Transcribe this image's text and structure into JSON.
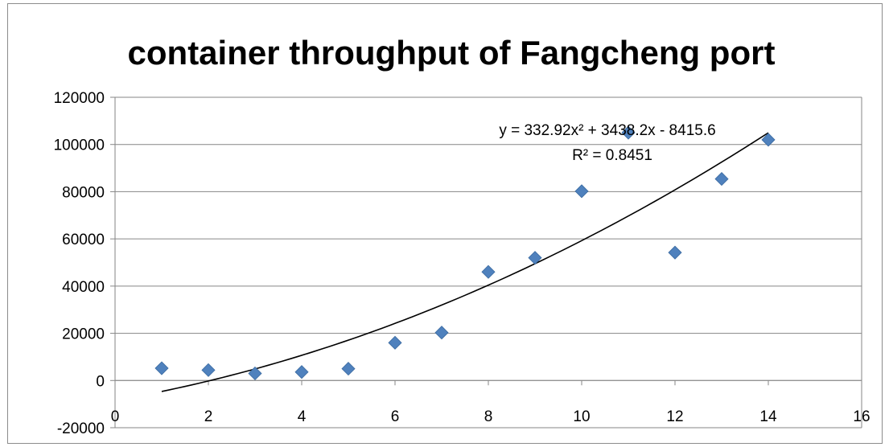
{
  "chart_data": {
    "type": "scatter",
    "title": "container throughput of Fangcheng port",
    "xlabel": "",
    "ylabel": "",
    "xlim": [
      0,
      16
    ],
    "ylim": [
      -20000,
      120000
    ],
    "x_ticks": [
      0,
      2,
      4,
      6,
      8,
      10,
      12,
      14,
      16
    ],
    "y_ticks": [
      -20000,
      0,
      20000,
      40000,
      60000,
      80000,
      100000,
      120000
    ],
    "grid": "horizontal",
    "legend": "none",
    "series": [
      {
        "x": [
          1,
          2,
          3,
          4,
          5,
          6,
          7,
          8,
          9,
          10,
          11,
          12,
          13,
          14
        ],
        "y": [
          5200,
          4400,
          3000,
          3600,
          5000,
          16000,
          20300,
          46000,
          52000,
          80200,
          105000,
          54200,
          85400,
          102000
        ],
        "color": "#4f81bd",
        "marker": "diamond"
      }
    ],
    "trendline": {
      "type": "polynomial",
      "order": 2,
      "coefficients": [
        332.92,
        3438.2,
        -8415.6
      ],
      "x_range": [
        1,
        14
      ],
      "equation": "y = 332.92x² + 3438.2x - 8415.6",
      "r_squared": "R² = 0.8451",
      "color": "#000000"
    }
  }
}
